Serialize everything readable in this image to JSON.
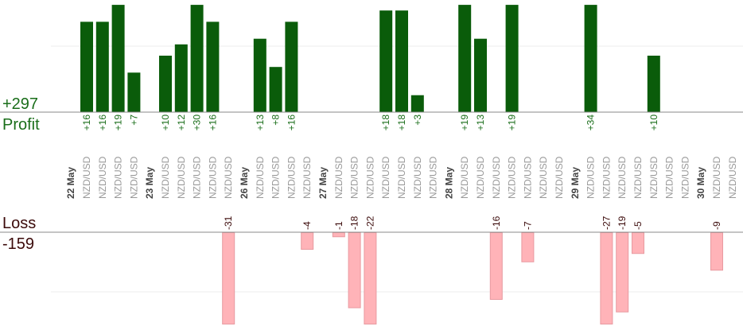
{
  "summary": {
    "profit_total": "+297",
    "profit_label": "Profit",
    "loss_label": "Loss",
    "loss_total": "-159"
  },
  "colors": {
    "profit_bar": "#0a5c0a",
    "profit_text": "#1a6e1a",
    "loss_bar": "#ffb3b8",
    "loss_stroke": "#e89aa0",
    "loss_text": "#3b0a0a",
    "category_text": "#999999",
    "date_text": "#444444",
    "axis": "#888888",
    "grid": "#eeeeee"
  },
  "chart_data": {
    "type": "bar",
    "title": "",
    "xlabel": "",
    "ylabel": "",
    "profit_ylim": [
      0,
      19
    ],
    "loss_ylim": [
      -22,
      0
    ],
    "grid": true,
    "dates": [
      {
        "label": "22 May",
        "before_index": 0
      },
      {
        "label": "23 May",
        "before_index": 4
      },
      {
        "label": "26 May",
        "before_index": 9
      },
      {
        "label": "27 May",
        "before_index": 13
      },
      {
        "label": "28 May",
        "before_index": 20
      },
      {
        "label": "29 May",
        "before_index": 27
      },
      {
        "label": "30 May",
        "before_index": 34
      }
    ],
    "categories": [
      "NZD/USD",
      "NZD/USD",
      "NZD/USD",
      "NZD/USD",
      "NZD/USD",
      "NZD/USD",
      "NZD/USD",
      "NZD/USD",
      "NZD/USD",
      "NZD/USD",
      "NZD/USD",
      "NZD/USD",
      "NZD/USD",
      "NZD/USD",
      "NZD/USD",
      "NZD/USD",
      "NZD/USD",
      "NZD/USD",
      "NZD/USD",
      "NZD/USD",
      "NZD/USD",
      "NZD/USD",
      "NZD/USD",
      "NZD/USD",
      "NZD/USD",
      "NZD/USD",
      "NZD/USD",
      "NZD/USD",
      "NZD/USD",
      "NZD/USD",
      "NZD/USD",
      "NZD/USD",
      "NZD/USD",
      "NZD/USD",
      "NZD/USD",
      "NZD/USD"
    ],
    "values": [
      16,
      16,
      19,
      7,
      10,
      12,
      30,
      16,
      -31,
      13,
      8,
      16,
      -4,
      -1,
      -18,
      -22,
      18,
      18,
      3,
      null,
      19,
      13,
      -16,
      19,
      -7,
      null,
      null,
      34,
      -27,
      -19,
      -5,
      10,
      null,
      null,
      -9,
      null
    ]
  }
}
